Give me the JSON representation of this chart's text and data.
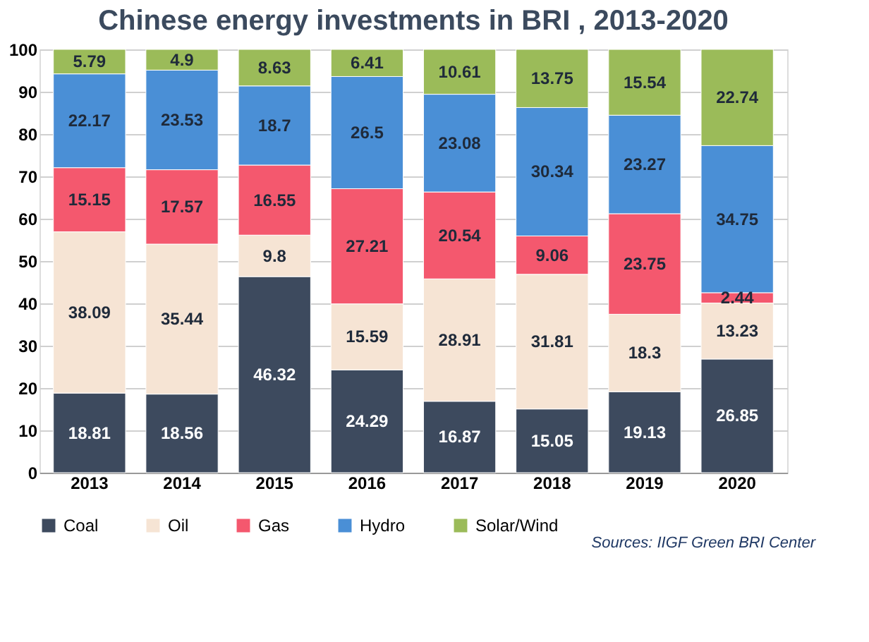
{
  "chart_data": {
    "type": "bar",
    "stacked": true,
    "title": "Chinese energy investments in BRI , 2013-2020",
    "categories": [
      "2013",
      "2014",
      "2015",
      "2016",
      "2017",
      "2018",
      "2019",
      "2020"
    ],
    "series": [
      {
        "name": "Coal",
        "color": "#3d4a5e",
        "values": [
          18.81,
          18.56,
          46.32,
          24.29,
          16.87,
          15.05,
          19.13,
          26.85
        ]
      },
      {
        "name": "Oil",
        "color": "#f6e4d4",
        "values": [
          38.09,
          35.44,
          9.8,
          15.59,
          28.91,
          31.81,
          18.3,
          13.23
        ]
      },
      {
        "name": "Gas",
        "color": "#f4586e",
        "values": [
          15.15,
          17.57,
          16.55,
          27.21,
          20.54,
          9.06,
          23.75,
          2.44
        ]
      },
      {
        "name": "Hydro",
        "color": "#4a8fd6",
        "values": [
          22.17,
          23.53,
          18.7,
          26.5,
          23.08,
          30.34,
          23.27,
          34.75
        ]
      },
      {
        "name": "Solar/Wind",
        "color": "#9bbb59",
        "values": [
          5.79,
          4.9,
          8.63,
          6.41,
          10.61,
          13.75,
          15.54,
          22.74
        ]
      }
    ],
    "ylim": [
      0,
      100
    ],
    "yticks": [
      0,
      10,
      20,
      30,
      40,
      50,
      60,
      70,
      80,
      90,
      100
    ],
    "grid": "y",
    "legend": "bottom",
    "data_labels": true,
    "annotations": [
      "Sources: IIGF Green BRI Center"
    ]
  }
}
